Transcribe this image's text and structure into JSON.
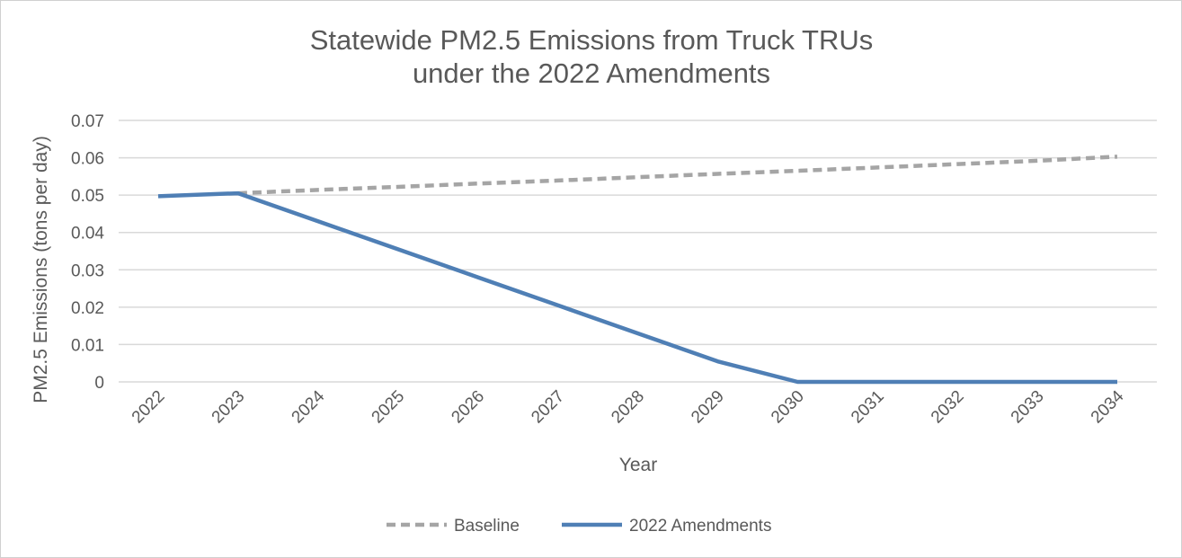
{
  "chart_data": {
    "type": "line",
    "title": [
      "Statewide PM2.5 Emissions from Truck TRUs",
      "under the 2022 Amendments"
    ],
    "xlabel": "Year",
    "ylabel": "PM2.5 Emissions (tons per day)",
    "categories": [
      "2022",
      "2023",
      "2024",
      "2025",
      "2026",
      "2027",
      "2028",
      "2029",
      "2030",
      "2031",
      "2032",
      "2033",
      "2034"
    ],
    "ylim": [
      0,
      0.07
    ],
    "yticks": [
      "0",
      "0.01",
      "0.02",
      "0.03",
      "0.04",
      "0.05",
      "0.06",
      "0.07"
    ],
    "grid": true,
    "legend_position": "bottom",
    "series": [
      {
        "name": "Baseline",
        "color": "#a5a5a5",
        "dash": true,
        "values": [
          null,
          0.0505,
          0.0514,
          0.0522,
          0.0531,
          0.0539,
          0.0548,
          0.0557,
          0.0565,
          0.0574,
          0.0583,
          0.0592,
          0.0603
        ]
      },
      {
        "name": "2022 Amendments",
        "color": "#4f7fb5",
        "dash": false,
        "values": [
          0.0497,
          0.0505,
          0.043,
          0.0355,
          0.028,
          0.0205,
          0.013,
          0.0055,
          0,
          0,
          0,
          0,
          0
        ]
      }
    ]
  }
}
